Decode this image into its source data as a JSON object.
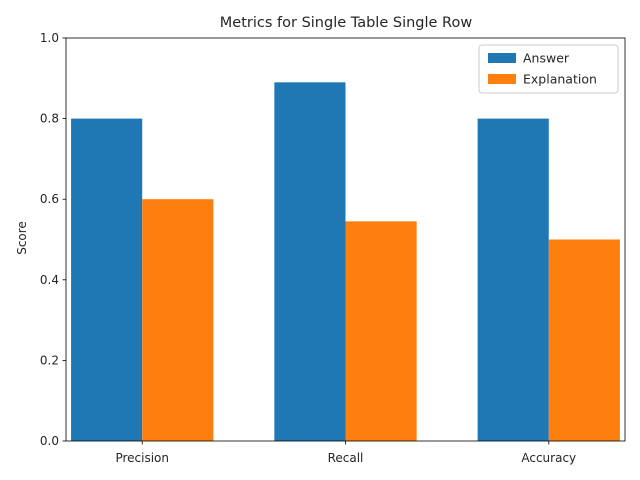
{
  "chart_data": {
    "type": "bar",
    "title": "Metrics for Single Table Single Row",
    "xlabel": "",
    "ylabel": "Score",
    "categories": [
      "Precision",
      "Recall",
      "Accuracy"
    ],
    "series": [
      {
        "name": "Answer",
        "color": "#1f77b4",
        "values": [
          0.8,
          0.89,
          0.8
        ]
      },
      {
        "name": "Explanation",
        "color": "#ff7f0e",
        "values": [
          0.6,
          0.545,
          0.5
        ]
      }
    ],
    "ylim": [
      0,
      1.0
    ],
    "yticks": [
      "0.0",
      "0.2",
      "0.4",
      "0.6",
      "0.8",
      "1.0"
    ],
    "grid": false,
    "legend_position": "top-right"
  }
}
